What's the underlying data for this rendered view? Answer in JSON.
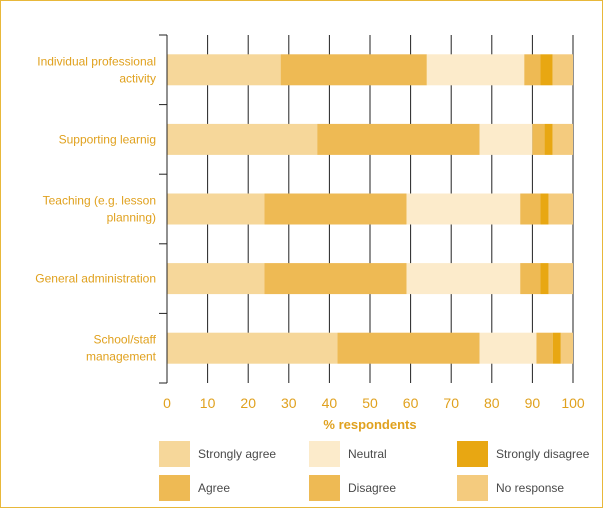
{
  "chart_data": {
    "type": "bar",
    "orientation": "horizontal",
    "stacked": true,
    "categories": [
      [
        "Individual professional",
        "activity"
      ],
      [
        "Supporting learnig"
      ],
      [
        "Teaching (e.g. lesson",
        "planning)"
      ],
      [
        "General administration"
      ],
      [
        "School/staff",
        "management"
      ]
    ],
    "series": [
      {
        "name": "Strongly agree",
        "color": "#f6d79a",
        "values": [
          28,
          37,
          24,
          24,
          42
        ]
      },
      {
        "name": "Agree",
        "color": "#eeba54",
        "values": [
          36,
          40,
          35,
          35,
          35
        ]
      },
      {
        "name": "Neutral",
        "color": "#fcebcb",
        "values": [
          24,
          13,
          28,
          28,
          14
        ]
      },
      {
        "name": "Disagree",
        "color": "#eeba54",
        "values": [
          4,
          3,
          5,
          5,
          4
        ]
      },
      {
        "name": "Strongly disagree",
        "color": "#e8a712",
        "values": [
          3,
          2,
          2,
          2,
          2
        ]
      },
      {
        "name": "No response",
        "color": "#f4cb7e",
        "values": [
          5,
          5,
          6,
          6,
          3
        ]
      }
    ],
    "xlabel": "% respondents",
    "xlim": [
      0,
      100
    ],
    "xticks": [
      0,
      10,
      20,
      30,
      40,
      50,
      60,
      70,
      80,
      90,
      100
    ],
    "grid": "vertical",
    "legend_position": "bottom",
    "legend_order": [
      "Strongly agree",
      "Neutral",
      "Strongly disagree",
      "Agree",
      "Disagree",
      "No response"
    ]
  }
}
